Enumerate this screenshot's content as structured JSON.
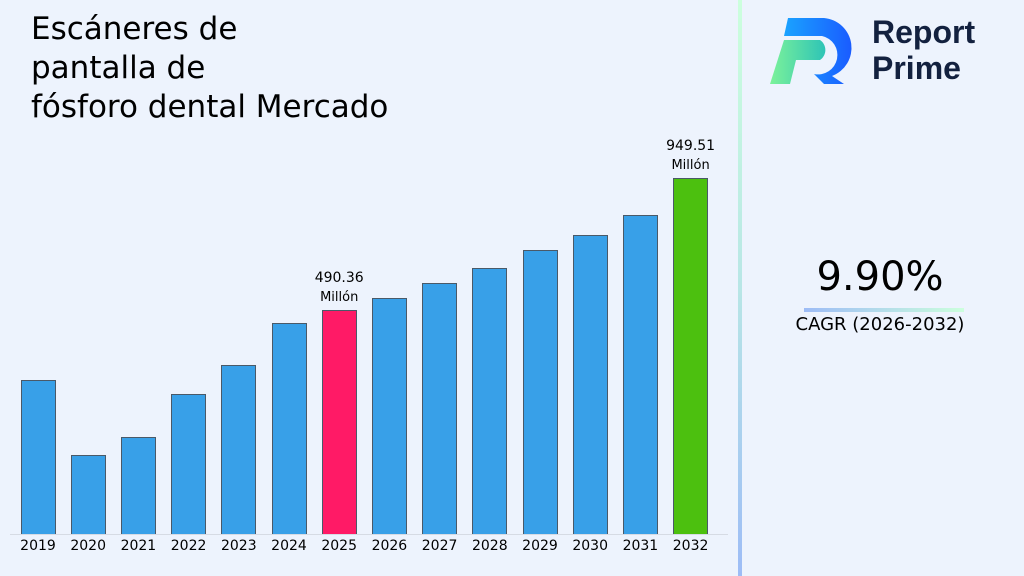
{
  "title": "Escáneres de pantalla de fósforo dental Mercado",
  "title_lines": [
    "Escáneres de",
    "pantalla de",
    "fósforo dental Mercado"
  ],
  "brand": {
    "line1": "Report",
    "line2": "Prime"
  },
  "cagr": {
    "value": "9.90%",
    "label": "CAGR (2026-2032)"
  },
  "colors": {
    "default_bar": "#38a0e8",
    "highlight_2025": "#ff1a66",
    "highlight_2032": "#4cc00f",
    "background": "#edf3fd"
  },
  "annotations": [
    {
      "year": "2025",
      "value": "490.36",
      "unit": "Millón"
    },
    {
      "year": "2032",
      "value": "949.51",
      "unit": "Millón"
    }
  ],
  "chart_data": {
    "type": "bar",
    "title": "Escáneres de pantalla de fósforo dental Mercado",
    "xlabel": "",
    "ylabel": "",
    "categories": [
      "2019",
      "2020",
      "2021",
      "2022",
      "2023",
      "2024",
      "2025",
      "2026",
      "2027",
      "2028",
      "2029",
      "2030",
      "2031",
      "2032"
    ],
    "values": [
      337,
      173,
      212,
      306,
      370,
      462,
      490.36,
      538.9,
      592.2,
      650.8,
      715.3,
      786.1,
      863.9,
      949.51
    ],
    "unit": "Millón",
    "highlighted": {
      "2025": "#ff1a66",
      "2032": "#4cc00f"
    },
    "grid": false,
    "legend": null,
    "y_axis_visible": false
  }
}
